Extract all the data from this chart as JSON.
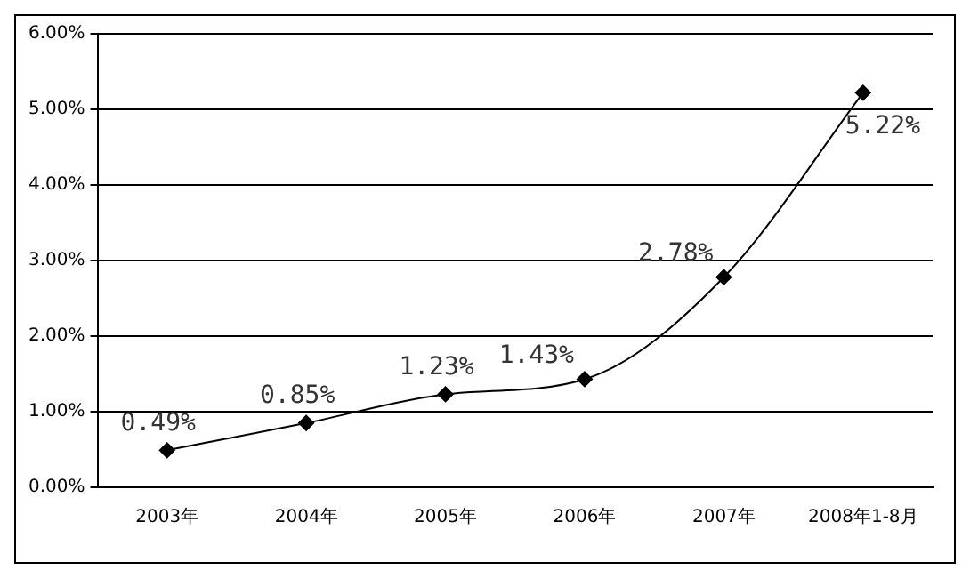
{
  "chart_data": {
    "type": "line",
    "categories": [
      "2003年",
      "2004年",
      "2005年",
      "2006年",
      "2007年",
      "2008年1-8月"
    ],
    "values": [
      0.49,
      0.85,
      1.23,
      1.43,
      2.78,
      5.22
    ],
    "value_labels": [
      "0.49%",
      "0.85%",
      "1.23%",
      "1.43%",
      "2.78%",
      "5.22%"
    ],
    "color": "#000000",
    "marker": "diamond",
    "line_style": "solid",
    "ylim": [
      0,
      6
    ],
    "yticks": [
      {
        "value": 0,
        "label": "0.00%"
      },
      {
        "value": 1,
        "label": "1.00%"
      },
      {
        "value": 2,
        "label": "2.00%"
      },
      {
        "value": 3,
        "label": "3.00%"
      },
      {
        "value": 4,
        "label": "4.00%"
      },
      {
        "value": 5,
        "label": "5.00%"
      },
      {
        "value": 6,
        "label": "6.00%"
      }
    ],
    "grid": "y",
    "legend": false
  }
}
